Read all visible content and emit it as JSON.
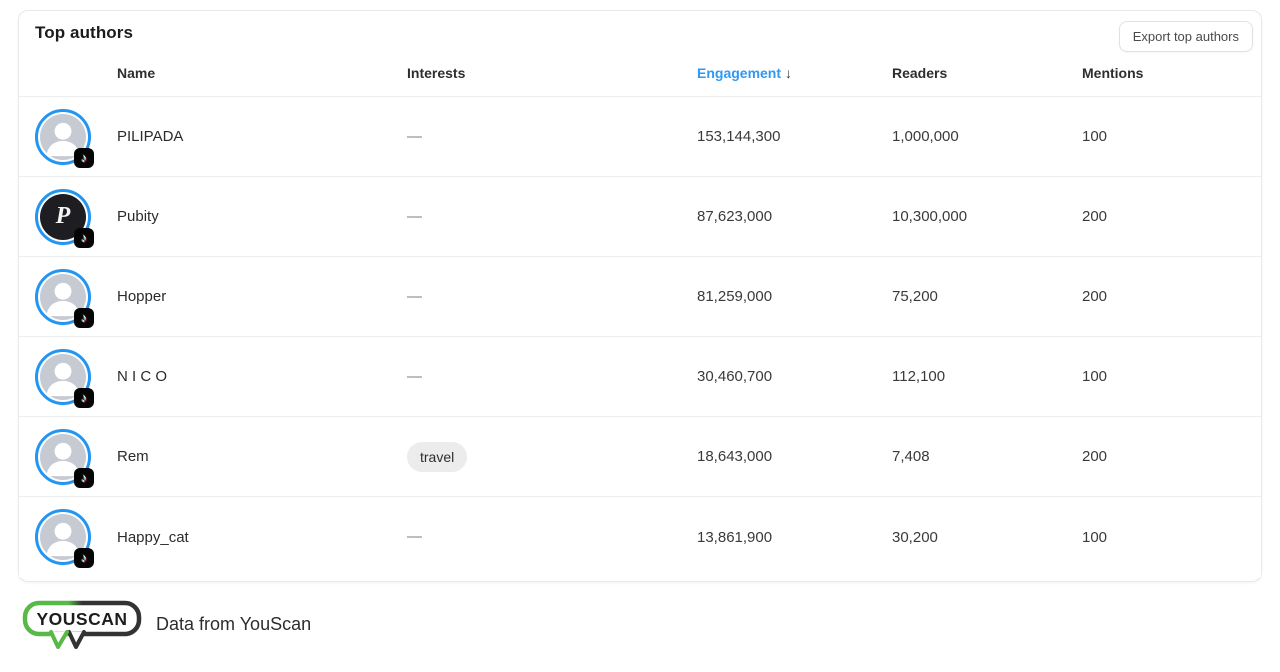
{
  "card": {
    "title": "Top authors",
    "export_button_label": "Export top authors",
    "columns": {
      "name": "Name",
      "interests": "Interests",
      "engagement": "Engagement",
      "readers": "Readers",
      "mentions": "Mentions"
    },
    "sort": {
      "column": "Engagement",
      "direction": "descending",
      "arrow": "↓"
    },
    "rows": [
      {
        "name": "PILIPADA",
        "interests": "—",
        "interests_is_tag": false,
        "engagement": "153,144,300",
        "readers": "1,000,000",
        "mentions": "100",
        "avatar_type": "placeholder",
        "platform": "tiktok"
      },
      {
        "name": "Pubity",
        "interests": "—",
        "interests_is_tag": false,
        "engagement": "87,623,000",
        "readers": "10,300,000",
        "mentions": "200",
        "avatar_type": "pubity-logo",
        "platform": "tiktok"
      },
      {
        "name": "Hopper",
        "interests": "—",
        "interests_is_tag": false,
        "engagement": "81,259,000",
        "readers": "75,200",
        "mentions": "200",
        "avatar_type": "placeholder",
        "platform": "tiktok"
      },
      {
        "name": "N I C O",
        "interests": "—",
        "interests_is_tag": false,
        "engagement": "30,460,700",
        "readers": "112,100",
        "mentions": "100",
        "avatar_type": "placeholder",
        "platform": "tiktok"
      },
      {
        "name": "Rem",
        "interests": "travel",
        "interests_is_tag": true,
        "engagement": "18,643,000",
        "readers": "7,408",
        "mentions": "200",
        "avatar_type": "placeholder",
        "platform": "tiktok"
      },
      {
        "name": "Happy_cat",
        "interests": "—",
        "interests_is_tag": false,
        "engagement": "13,861,900",
        "readers": "30,200",
        "mentions": "100",
        "avatar_type": "placeholder",
        "platform": "tiktok"
      }
    ]
  },
  "footer": {
    "logo_text": "YOUSCAN",
    "caption": "Data from YouScan"
  },
  "colors": {
    "accent_blue": "#2f98f5",
    "avatar_ring_blue": "#2196f3",
    "logo_green": "#58b947",
    "logo_dark": "#333333",
    "row_divider": "#ededed",
    "tag_background": "#ececec"
  },
  "icons": {
    "platform_badge": "tiktok-icon",
    "sort_indicator": "sort-descending-arrow-icon"
  }
}
